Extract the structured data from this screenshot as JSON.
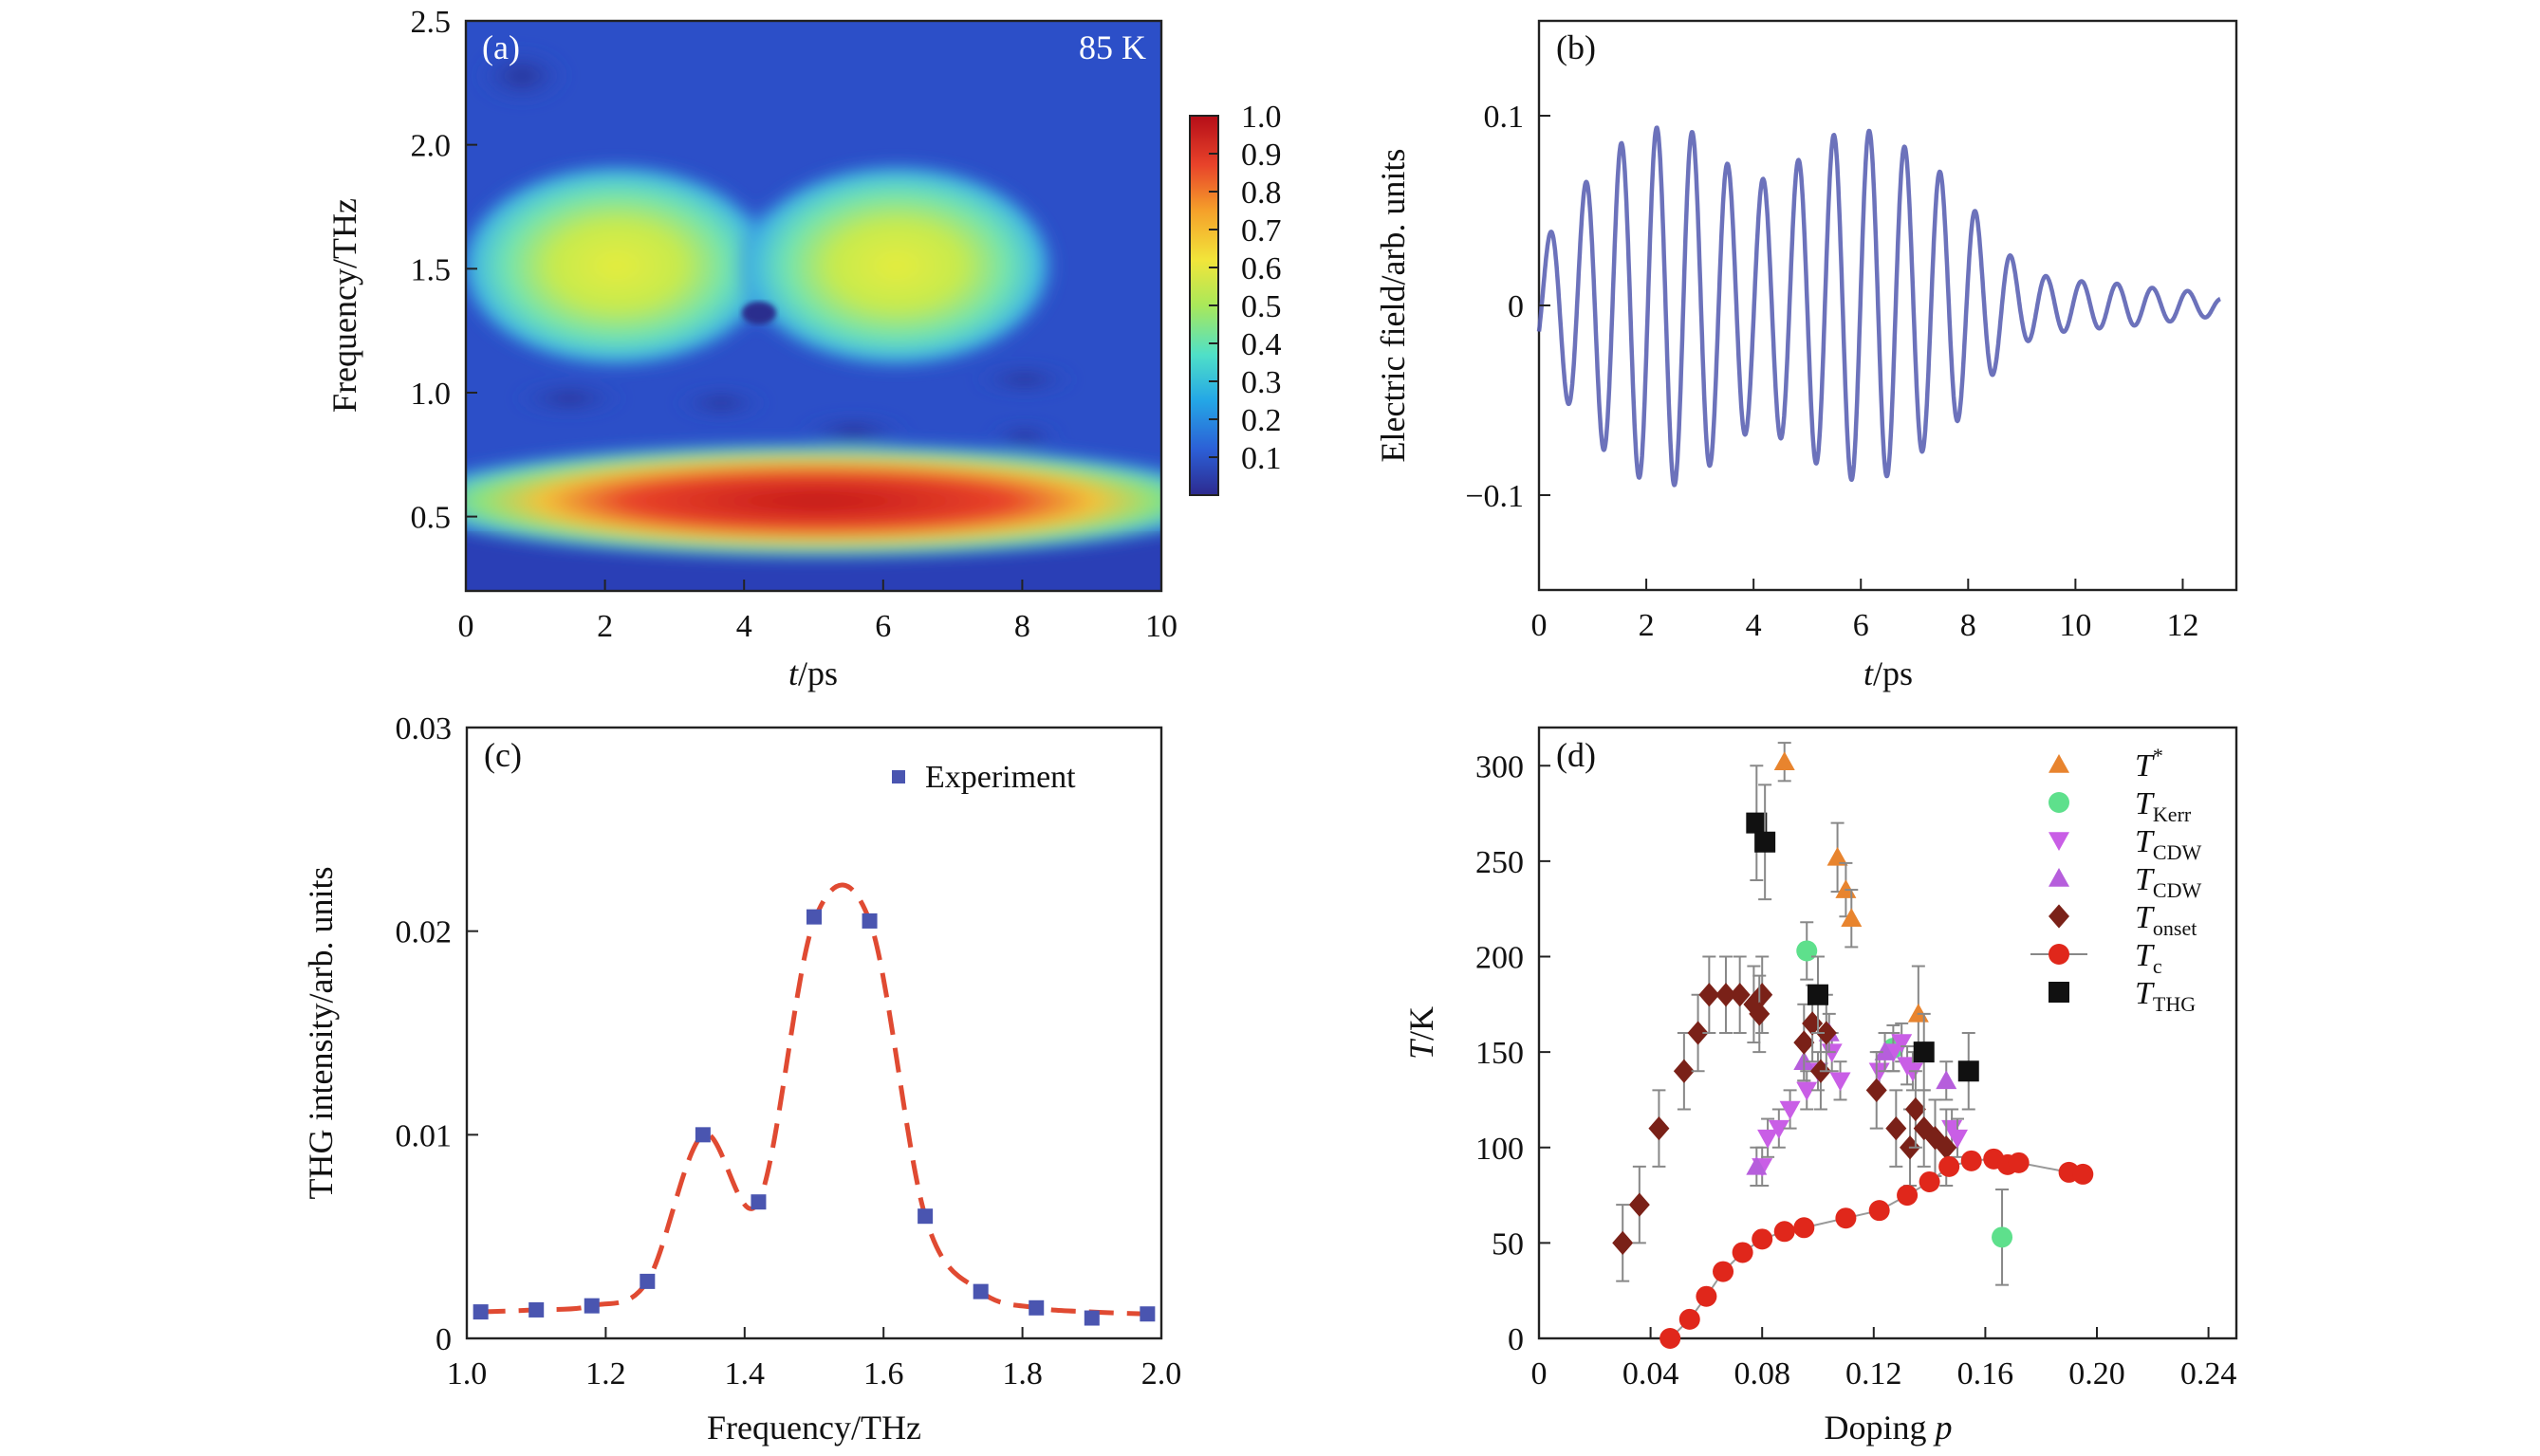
{
  "colors": {
    "trace": "#5c63b4",
    "fit": "#e04a32",
    "experiment_marker": "#4a55b0",
    "T_star": "#e8842e",
    "T_Kerr": "#5ee08c",
    "T_CDW_down": "#c95ee6",
    "T_CDW_up": "#b65edc",
    "T_onset": "#7a2118",
    "T_c": "#e0271b",
    "T_THG": "#111111",
    "colormap": [
      "#2d2a8f",
      "#2c5fd6",
      "#24a7e6",
      "#4fe0c8",
      "#a9e85a",
      "#f2e53a",
      "#f5a02a",
      "#e8432a",
      "#b40d18"
    ]
  },
  "panels": {
    "a": {
      "label": "(a)",
      "annotation": "85 K",
      "xlabel_italic": "t",
      "xlabel_rest": "/ps",
      "ylabel": "Frequency/THz"
    },
    "b": {
      "label": "(b)",
      "xlabel_italic": "t",
      "xlabel_rest": "/ps",
      "ylabel": "Electric field/arb. units"
    },
    "c": {
      "label": "(c)",
      "xlabel": "Frequency/THz",
      "ylabel": "THG intensity/arb. units",
      "legend": "Experiment"
    },
    "d": {
      "label": "(d)",
      "xlabel": "Doping ",
      "xlabel_italic": "p",
      "ylabel_italic": "T",
      "ylabel_rest": "/K"
    }
  },
  "chart_data": [
    {
      "id": "a",
      "type": "heatmap",
      "xlim": [
        0,
        10
      ],
      "ylim": [
        0.2,
        2.5
      ],
      "xticks": [
        "0",
        "2",
        "4",
        "6",
        "8",
        "10"
      ],
      "yticks": [
        "0.5",
        "1.0",
        "1.5",
        "2.0",
        "2.5"
      ],
      "colorbar": {
        "range": [
          0,
          1.0
        ],
        "ticks": [
          "0.1",
          "0.2",
          "0.3",
          "0.4",
          "0.5",
          "0.6",
          "0.7",
          "0.8",
          "0.9",
          "1.0"
        ]
      },
      "features": [
        {
          "t": 2.2,
          "f": 1.5,
          "intensity": 0.55
        },
        {
          "t": 6.4,
          "f": 1.5,
          "intensity": 0.55
        },
        {
          "t": 4.0,
          "f": 1.33,
          "intensity": 0.0
        },
        {
          "t": 3.0,
          "f": 0.52,
          "intensity": 0.95
        },
        {
          "t": 6.0,
          "f": 0.52,
          "intensity": 1.0
        }
      ]
    },
    {
      "id": "b",
      "type": "line",
      "xlim": [
        0,
        13
      ],
      "ylim": [
        -0.15,
        0.15
      ],
      "xticks": [
        "0",
        "2",
        "4",
        "6",
        "8",
        "10",
        "12"
      ],
      "yticks": [
        "0.1",
        "0",
        "−0.1"
      ],
      "ytick_values": [
        0.1,
        0,
        -0.1
      ],
      "x": [
        0.0,
        0.5,
        1.0,
        1.5,
        2.0,
        2.5,
        3.0,
        3.5,
        4.0,
        4.5,
        5.0,
        5.5,
        6.0,
        6.5,
        7.0,
        7.5,
        8.0,
        8.5,
        9.0,
        9.5,
        10.0,
        10.5,
        11.0,
        11.5,
        12.0,
        12.5,
        12.7
      ],
      "y_envelope": [
        0.03,
        0.05,
        0.07,
        0.085,
        0.093,
        0.095,
        0.09,
        0.075,
        0.065,
        0.07,
        0.08,
        0.09,
        0.093,
        0.09,
        0.08,
        0.07,
        0.055,
        0.035,
        0.02,
        0.015,
        0.013,
        0.012,
        0.011,
        0.009,
        0.008,
        0.006,
        0.004
      ],
      "period_ps": 0.66
    },
    {
      "id": "c",
      "type": "scatter",
      "xlim": [
        1.0,
        2.0
      ],
      "ylim": [
        0,
        0.03
      ],
      "xticks": [
        "1.0",
        "1.2",
        "1.4",
        "1.6",
        "1.8",
        "2.0"
      ],
      "yticks": [
        "0",
        "0.01",
        "0.02",
        "0.03"
      ],
      "series": [
        {
          "name": "Experiment",
          "x": [
            1.02,
            1.1,
            1.18,
            1.26,
            1.34,
            1.42,
            1.5,
            1.58,
            1.66,
            1.74,
            1.82,
            1.9,
            1.98
          ],
          "y": [
            0.0013,
            0.0014,
            0.0016,
            0.0028,
            0.01,
            0.0067,
            0.0207,
            0.0205,
            0.006,
            0.0023,
            0.0015,
            0.001,
            0.0012
          ]
        }
      ],
      "fit": {
        "x": [
          1.02,
          1.1,
          1.18,
          1.26,
          1.34,
          1.42,
          1.5,
          1.58,
          1.66,
          1.74,
          1.82,
          1.9,
          1.98
        ],
        "y": [
          0.0013,
          0.0014,
          0.0016,
          0.0028,
          0.01,
          0.0067,
          0.0205,
          0.0205,
          0.006,
          0.0023,
          0.0015,
          0.0013,
          0.0012
        ]
      }
    },
    {
      "id": "d",
      "type": "scatter",
      "xlim": [
        0,
        0.25
      ],
      "ylim": [
        0,
        320
      ],
      "xticks": [
        "0",
        "0.04",
        "0.08",
        "0.12",
        "0.16",
        "0.20",
        "0.24"
      ],
      "yticks": [
        "0",
        "50",
        "100",
        "150",
        "200",
        "250",
        "300"
      ],
      "legend_position": "top-right",
      "series": [
        {
          "name": "T",
          "name_sup": "*",
          "marker": "triangle-up",
          "color_key": "T_star",
          "x": [
            0.088,
            0.107,
            0.11,
            0.112,
            0.136
          ],
          "y": [
            302,
            252,
            235,
            220,
            170
          ],
          "err": [
            10,
            18,
            14,
            15,
            25
          ]
        },
        {
          "name": "T",
          "name_sub": "Kerr",
          "marker": "circle",
          "color_key": "T_Kerr",
          "x": [
            0.096,
            0.127,
            0.166
          ],
          "y": [
            203,
            152,
            53
          ],
          "err": [
            15,
            12,
            25
          ]
        },
        {
          "name": "T",
          "name_sub": "CDW",
          "marker": "triangle-down",
          "color_key": "T_CDW_down",
          "x": [
            0.08,
            0.082,
            0.086,
            0.09,
            0.096,
            0.1,
            0.105,
            0.108,
            0.122,
            0.127,
            0.13,
            0.132,
            0.134,
            0.148,
            0.15
          ],
          "y": [
            90,
            105,
            110,
            120,
            130,
            140,
            150,
            135,
            140,
            150,
            155,
            143,
            140,
            110,
            105
          ],
          "err": [
            10,
            10,
            10,
            10,
            10,
            10,
            10,
            10,
            10,
            10,
            10,
            10,
            10,
            10,
            10
          ]
        },
        {
          "name": "T",
          "name_sub": "CDW",
          "marker": "triangle-up",
          "color_key": "T_CDW_up",
          "x": [
            0.078,
            0.095,
            0.104,
            0.124,
            0.146
          ],
          "y": [
            90,
            145,
            160,
            150,
            135
          ],
          "err": [
            10,
            10,
            10,
            10,
            10
          ]
        },
        {
          "name": "T",
          "name_sub": "onset",
          "marker": "diamond",
          "color_key": "T_onset",
          "x": [
            0.03,
            0.036,
            0.043,
            0.052,
            0.057,
            0.061,
            0.067,
            0.072,
            0.077,
            0.08,
            0.079,
            0.095,
            0.098,
            0.101,
            0.103,
            0.121,
            0.128,
            0.133,
            0.135,
            0.138,
            0.142,
            0.146
          ],
          "y": [
            50,
            70,
            110,
            140,
            160,
            180,
            180,
            180,
            175,
            180,
            170,
            155,
            165,
            140,
            160,
            130,
            110,
            100,
            120,
            110,
            105,
            100
          ],
          "err": [
            20,
            20,
            20,
            20,
            20,
            20,
            20,
            20,
            20,
            20,
            20,
            20,
            20,
            20,
            20,
            20,
            20,
            20,
            20,
            20,
            20,
            20
          ]
        },
        {
          "name": "T",
          "name_sub": "c",
          "marker": "circle-line",
          "color_key": "T_c",
          "x": [
            0.047,
            0.054,
            0.06,
            0.066,
            0.073,
            0.08,
            0.088,
            0.095,
            0.11,
            0.122,
            0.132,
            0.14,
            0.147,
            0.155,
            0.163,
            0.168,
            0.172,
            0.19,
            0.195
          ],
          "y": [
            0,
            10,
            22,
            35,
            45,
            52,
            56,
            58,
            63,
            67,
            75,
            82,
            90,
            93,
            94,
            91,
            92,
            87,
            86
          ],
          "err": []
        },
        {
          "name": "T",
          "name_sub": "THG",
          "marker": "square",
          "color_key": "T_THG",
          "x": [
            0.078,
            0.081,
            0.1,
            0.138,
            0.154
          ],
          "y": [
            270,
            260,
            180,
            150,
            140
          ],
          "err": [
            30,
            30,
            20,
            20,
            20
          ]
        }
      ]
    }
  ]
}
